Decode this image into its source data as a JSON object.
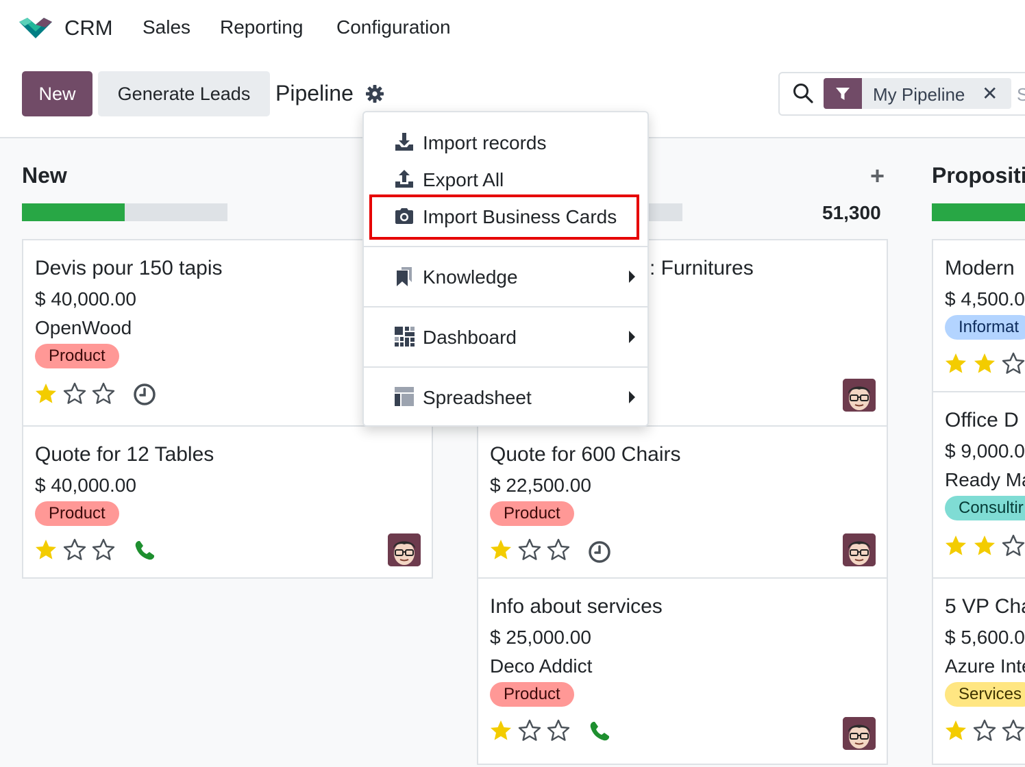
{
  "nav": {
    "app_name": "CRM",
    "menu": [
      "Sales",
      "Reporting",
      "Configuration"
    ]
  },
  "control": {
    "new_label": "New",
    "generate_label": "Generate Leads",
    "title": "Pipeline",
    "facet_label": "My Pipeline",
    "search_overflow": "S"
  },
  "dropdown": {
    "items": [
      {
        "label": "Import records",
        "icon": "download-icon"
      },
      {
        "label": "Export All",
        "icon": "upload-icon"
      },
      {
        "label": "Import Business Cards",
        "icon": "camera-icon"
      },
      {
        "label": "Knowledge",
        "icon": "bookmark-icon"
      },
      {
        "label": "Dashboard",
        "icon": "dashboard-icon"
      },
      {
        "label": "Spreadsheet",
        "icon": "spreadsheet-icon"
      }
    ]
  },
  "columns": [
    {
      "title": "New",
      "progress": 0.5,
      "cards": [
        {
          "title": "Devis pour 150 tapis",
          "amount": "$ 40,000.00",
          "partner": "OpenWood",
          "tag": "Product",
          "stars": 1,
          "activity": "clock"
        },
        {
          "title": "Quote for 12 Tables",
          "amount": "$ 40,000.00",
          "tag": "Product",
          "stars": 1,
          "activity": "phone"
        }
      ]
    },
    {
      "title": "",
      "total": "51,300",
      "cards": [
        {
          "title": ": Furnitures"
        },
        {
          "title": "Quote for 600 Chairs",
          "amount": "$ 22,500.00",
          "tag": "Product",
          "stars": 1,
          "activity": "clock"
        },
        {
          "title": "Info about services",
          "amount": "$ 25,000.00",
          "partner": "Deco Addict",
          "tag": "Product",
          "stars": 1,
          "activity": "phone"
        }
      ]
    },
    {
      "title": "Propositi",
      "cards": [
        {
          "title": "Modern",
          "amount": "$ 4,500.0",
          "tag": "Informat",
          "stars": 2
        },
        {
          "title": "Office D",
          "amount": "$ 9,000.0",
          "partner": "Ready Ma",
          "tag": "Consultir",
          "stars": 2
        },
        {
          "title": "5 VP Cha",
          "amount": "$ 5,600.0",
          "partner": "Azure Inte",
          "tag": "Services",
          "stars": 1
        }
      ]
    }
  ],
  "colors": {
    "brand": "#714b67",
    "progress_green": "#28a745",
    "highlight_red": "#e60000"
  }
}
